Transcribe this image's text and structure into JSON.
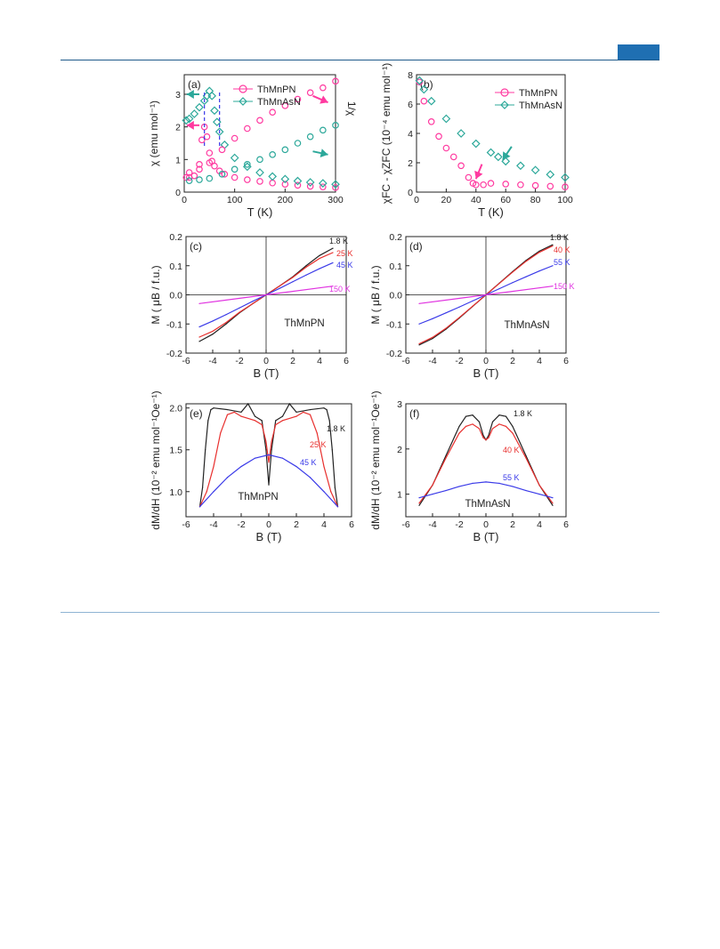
{
  "page": {
    "accent_color": "#1f6fb2",
    "rule_color": "#1f5a8a"
  },
  "chart_data": [
    {
      "id": "a",
      "type": "scatter",
      "panel_label": "(a)",
      "xlabel": "T (K)",
      "ylabel": "χ (emu mol⁻¹)",
      "y2label": "1/χ",
      "xlim": [
        0,
        300
      ],
      "ylim": [
        0,
        3.6
      ],
      "xticks": [
        0,
        100,
        200,
        300
      ],
      "yticks": [
        0,
        1,
        2,
        3
      ],
      "legend": "top-right",
      "series": [
        {
          "name": "ThMnPN",
          "marker": "circle",
          "color": "#ff3aa0",
          "x": [
            4,
            10,
            20,
            30,
            35,
            40,
            45,
            50,
            55,
            60,
            70,
            80,
            100,
            125,
            150,
            175,
            200,
            225,
            250,
            275,
            300
          ],
          "y": [
            0.45,
            0.45,
            0.5,
            0.85,
            1.6,
            2.0,
            1.7,
            1.2,
            0.95,
            0.8,
            0.65,
            0.55,
            0.45,
            0.38,
            0.33,
            0.28,
            0.24,
            0.21,
            0.18,
            0.16,
            0.14
          ]
        },
        {
          "name": "ThMnAsN",
          "marker": "diamond",
          "color": "#2ca89a",
          "x": [
            4,
            10,
            20,
            30,
            40,
            45,
            50,
            55,
            60,
            65,
            70,
            80,
            100,
            125,
            150,
            175,
            200,
            225,
            250,
            275,
            300
          ],
          "y": [
            2.2,
            2.25,
            2.4,
            2.6,
            2.8,
            2.95,
            3.1,
            2.95,
            2.5,
            2.15,
            1.85,
            1.45,
            1.05,
            0.78,
            0.6,
            0.48,
            0.4,
            0.34,
            0.3,
            0.27,
            0.24
          ]
        },
        {
          "name": "ThMnPN 1/χ",
          "marker": "circle",
          "color": "#ff3aa0",
          "x": [
            10,
            30,
            50,
            75,
            100,
            125,
            150,
            175,
            200,
            225,
            250,
            275,
            300
          ],
          "y": [
            0.6,
            0.7,
            0.9,
            1.3,
            1.65,
            1.95,
            2.2,
            2.45,
            2.65,
            2.85,
            3.05,
            3.2,
            3.4
          ]
        },
        {
          "name": "ThMnAsN 1/χ",
          "marker": "circle",
          "color": "#2ca89a",
          "x": [
            10,
            30,
            50,
            75,
            100,
            125,
            150,
            175,
            200,
            225,
            250,
            275,
            300
          ],
          "y": [
            0.35,
            0.38,
            0.42,
            0.55,
            0.7,
            0.85,
            1.0,
            1.15,
            1.3,
            1.5,
            1.7,
            1.9,
            2.05
          ]
        }
      ],
      "annotations": [
        {
          "type": "arrow",
          "color": "#2ca89a",
          "from": [
            30,
            3.0
          ],
          "to": [
            5,
            3.0
          ]
        },
        {
          "type": "arrow",
          "color": "#ff3aa0",
          "from": [
            30,
            2.05
          ],
          "to": [
            5,
            2.05
          ]
        },
        {
          "type": "arrow",
          "color": "#ff3aa0",
          "from": [
            255,
            2.95
          ],
          "to": [
            285,
            2.75
          ]
        },
        {
          "type": "arrow",
          "color": "#2ca89a",
          "from": [
            255,
            1.25
          ],
          "to": [
            285,
            1.15
          ]
        }
      ]
    },
    {
      "id": "b",
      "type": "scatter",
      "panel_label": "(b)",
      "xlabel": "T (K)",
      "ylabel": "χFC - χZFC (10⁻⁴ emu mol⁻¹)",
      "xlim": [
        0,
        100
      ],
      "ylim": [
        0,
        8
      ],
      "xticks": [
        0,
        20,
        40,
        60,
        80,
        100
      ],
      "yticks": [
        0,
        2,
        4,
        6,
        8
      ],
      "legend": "top-right",
      "series": [
        {
          "name": "ThMnPN",
          "marker": "circle",
          "color": "#ff3aa0",
          "x": [
            2,
            5,
            10,
            15,
            20,
            25,
            30,
            35,
            38,
            40,
            45,
            50,
            60,
            70,
            80,
            90,
            100
          ],
          "y": [
            7.5,
            6.2,
            4.8,
            3.8,
            3.0,
            2.4,
            1.8,
            1.0,
            0.6,
            0.5,
            0.5,
            0.6,
            0.55,
            0.5,
            0.45,
            0.4,
            0.35
          ]
        },
        {
          "name": "ThMnAsN",
          "marker": "diamond",
          "color": "#2ca89a",
          "x": [
            2,
            5,
            10,
            20,
            30,
            40,
            50,
            55,
            60,
            70,
            80,
            90,
            100
          ],
          "y": [
            7.6,
            7.0,
            6.2,
            5.0,
            4.0,
            3.3,
            2.7,
            2.4,
            2.1,
            1.8,
            1.5,
            1.2,
            1.0
          ]
        }
      ],
      "annotations": [
        {
          "type": "arrow",
          "color": "#2ca89a",
          "from": [
            64,
            3.1
          ],
          "to": [
            58,
            2.2
          ]
        },
        {
          "type": "arrow",
          "color": "#ff3aa0",
          "from": [
            44,
            1.9
          ],
          "to": [
            40,
            0.9
          ]
        }
      ]
    },
    {
      "id": "c",
      "type": "line",
      "panel_label": "(c)",
      "xlabel": "B (T)",
      "ylabel": "M ( μB / f.u.)",
      "xlim": [
        -6,
        6
      ],
      "ylim": [
        -0.2,
        0.2
      ],
      "xticks": [
        -6,
        -4,
        -2,
        0,
        2,
        4,
        6
      ],
      "yticks": [
        -0.2,
        -0.1,
        0.0,
        0.1,
        0.2
      ],
      "inner_label": "ThMnPN",
      "series": [
        {
          "name": "1.8 K",
          "color": "#222222",
          "x": [
            -5,
            -4,
            -3,
            -2,
            -1,
            0,
            1,
            2,
            3,
            4,
            5
          ],
          "y": [
            -0.16,
            -0.135,
            -0.1,
            -0.062,
            -0.03,
            0,
            0.03,
            0.062,
            0.1,
            0.135,
            0.16
          ]
        },
        {
          "name": "25 K",
          "color": "#e8302e",
          "x": [
            -5,
            -4,
            -3,
            -2,
            -1,
            0,
            1,
            2,
            3,
            4,
            5
          ],
          "y": [
            -0.145,
            -0.125,
            -0.095,
            -0.06,
            -0.03,
            0,
            0.03,
            0.06,
            0.095,
            0.125,
            0.145
          ]
        },
        {
          "name": "45 K",
          "color": "#3a3ae8",
          "x": [
            -5,
            -4,
            -3,
            -2,
            -1,
            0,
            1,
            2,
            3,
            4,
            5
          ],
          "y": [
            -0.11,
            -0.09,
            -0.068,
            -0.045,
            -0.022,
            0,
            0.022,
            0.045,
            0.068,
            0.09,
            0.11
          ]
        },
        {
          "name": "150 K",
          "color": "#e032e0",
          "x": [
            -5,
            0,
            5
          ],
          "y": [
            -0.03,
            0,
            0.03
          ]
        }
      ]
    },
    {
      "id": "d",
      "type": "line",
      "panel_label": "(d)",
      "xlabel": "B (T)",
      "ylabel": "M ( μB / f.u.)",
      "xlim": [
        -6,
        6
      ],
      "ylim": [
        -0.2,
        0.2
      ],
      "xticks": [
        -6,
        -4,
        -2,
        0,
        2,
        4,
        6
      ],
      "yticks": [
        -0.2,
        -0.1,
        0.0,
        0.1,
        0.2
      ],
      "inner_label": "ThMnAsN",
      "series": [
        {
          "name": "1.8 K",
          "color": "#222222",
          "x": [
            -5,
            -4,
            -3,
            -2,
            -1,
            0,
            1,
            2,
            3,
            4,
            5
          ],
          "y": [
            -0.172,
            -0.15,
            -0.118,
            -0.08,
            -0.04,
            0,
            0.04,
            0.08,
            0.118,
            0.15,
            0.172
          ]
        },
        {
          "name": "40 K",
          "color": "#e8302e",
          "x": [
            -5,
            -4,
            -3,
            -2,
            -1,
            0,
            1,
            2,
            3,
            4,
            5
          ],
          "y": [
            -0.168,
            -0.146,
            -0.115,
            -0.078,
            -0.039,
            0,
            0.039,
            0.078,
            0.115,
            0.146,
            0.168
          ]
        },
        {
          "name": "55 K",
          "color": "#3a3ae8",
          "x": [
            -5,
            -4,
            -3,
            -2,
            -1,
            0,
            1,
            2,
            3,
            4,
            5
          ],
          "y": [
            -0.1,
            -0.082,
            -0.062,
            -0.042,
            -0.021,
            0,
            0.021,
            0.042,
            0.062,
            0.082,
            0.1
          ]
        },
        {
          "name": "150 K",
          "color": "#e032e0",
          "x": [
            -5,
            0,
            5
          ],
          "y": [
            -0.03,
            0,
            0.03
          ]
        }
      ]
    },
    {
      "id": "e",
      "type": "line",
      "panel_label": "(e)",
      "xlabel": "B (T)",
      "ylabel": "dM/dH (10⁻² emu mol⁻¹Oe⁻¹)",
      "xlim": [
        -6,
        6
      ],
      "ylim": [
        0.7,
        2.05
      ],
      "xticks": [
        -6,
        -4,
        -2,
        0,
        2,
        4,
        6
      ],
      "yticks": [
        1.0,
        1.5,
        2.0
      ],
      "inner_label": "ThMnPN",
      "series": [
        {
          "name": "1.8 K",
          "color": "#222222",
          "x": [
            -5,
            -4.8,
            -4.6,
            -4.4,
            -4.2,
            -4,
            -3,
            -2,
            -1.5,
            -1,
            -0.5,
            -0.2,
            0,
            0.2,
            0.5,
            1,
            1.5,
            2,
            3,
            4,
            4.2,
            4.4,
            4.6,
            4.8,
            5
          ],
          "y": [
            0.82,
            1.05,
            1.5,
            1.85,
            1.98,
            2.0,
            1.98,
            1.95,
            2.05,
            1.9,
            1.85,
            1.5,
            1.08,
            1.5,
            1.85,
            1.9,
            2.05,
            1.95,
            1.98,
            2.0,
            1.98,
            1.85,
            1.5,
            1.05,
            0.82
          ]
        },
        {
          "name": "25 K",
          "color": "#e8302e",
          "x": [
            -5,
            -4.5,
            -4,
            -3.5,
            -3,
            -2.5,
            -2,
            -1,
            -0.5,
            -0.2,
            0,
            0.2,
            0.5,
            1,
            2,
            2.5,
            3,
            3.5,
            4,
            4.5,
            5
          ],
          "y": [
            0.82,
            1.0,
            1.3,
            1.7,
            1.92,
            1.95,
            1.9,
            1.85,
            1.8,
            1.6,
            1.35,
            1.6,
            1.8,
            1.85,
            1.9,
            1.95,
            1.92,
            1.7,
            1.3,
            1.0,
            0.82
          ]
        },
        {
          "name": "45 K",
          "color": "#3a3ae8",
          "x": [
            -5,
            -4,
            -3,
            -2,
            -1,
            0,
            1,
            2,
            3,
            4,
            5
          ],
          "y": [
            0.82,
            1.0,
            1.17,
            1.3,
            1.4,
            1.44,
            1.4,
            1.3,
            1.17,
            1.0,
            0.82
          ]
        }
      ]
    },
    {
      "id": "f",
      "type": "line",
      "panel_label": "(f)",
      "xlabel": "B (T)",
      "ylabel": "dM/dH (10⁻² emu mol⁻¹Oe⁻¹)",
      "xlim": [
        -6,
        6
      ],
      "ylim": [
        0.5,
        3
      ],
      "xticks": [
        -6,
        -4,
        -2,
        0,
        2,
        4,
        6
      ],
      "yticks": [
        1,
        2,
        3
      ],
      "inner_label": "ThMnAsN",
      "series": [
        {
          "name": "1.8 K",
          "color": "#222222",
          "x": [
            -5,
            -4,
            -3,
            -2,
            -1.5,
            -1,
            -0.5,
            -0.2,
            0,
            0.2,
            0.5,
            1,
            1.5,
            2,
            3,
            4,
            5
          ],
          "y": [
            0.75,
            1.2,
            1.85,
            2.5,
            2.72,
            2.75,
            2.6,
            2.3,
            2.2,
            2.3,
            2.6,
            2.75,
            2.72,
            2.5,
            1.85,
            1.2,
            0.75
          ]
        },
        {
          "name": "40 K",
          "color": "#e8302e",
          "x": [
            -5,
            -4,
            -3,
            -2,
            -1.5,
            -1,
            -0.5,
            -0.2,
            0,
            0.2,
            0.5,
            1,
            1.5,
            2,
            3,
            4,
            5
          ],
          "y": [
            0.8,
            1.2,
            1.8,
            2.35,
            2.5,
            2.55,
            2.45,
            2.25,
            2.2,
            2.25,
            2.45,
            2.55,
            2.5,
            2.35,
            1.8,
            1.2,
            0.8
          ]
        },
        {
          "name": "55 K",
          "color": "#3a3ae8",
          "x": [
            -5,
            -4,
            -3,
            -2,
            -1,
            0,
            1,
            2,
            3,
            4,
            5
          ],
          "y": [
            0.92,
            1.0,
            1.08,
            1.17,
            1.24,
            1.27,
            1.24,
            1.17,
            1.08,
            1.0,
            0.92
          ]
        }
      ]
    }
  ]
}
